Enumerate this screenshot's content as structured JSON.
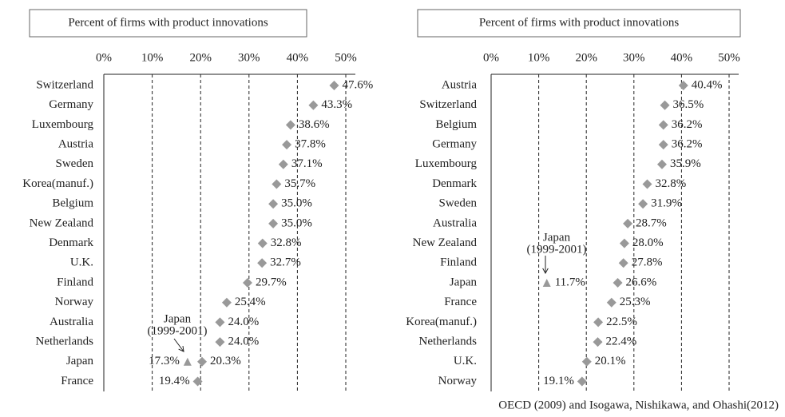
{
  "chart_data": [
    {
      "type": "dot",
      "title": "Percent of firms with product innovations",
      "categories": [
        "Switzerland",
        "Germany",
        "Luxembourg",
        "Austria",
        "Sweden",
        "Korea(manuf.)",
        "Belgium",
        "New Zealand",
        "Denmark",
        "U.K.",
        "Finland",
        "Norway",
        "Australia",
        "Netherlands",
        "Japan",
        "France"
      ],
      "series": [
        {
          "marker": "diamond",
          "color": "#999999",
          "values": [
            47.6,
            43.3,
            38.6,
            37.8,
            37.1,
            35.7,
            35.0,
            35.0,
            32.8,
            32.7,
            29.7,
            25.4,
            24.0,
            24.0,
            20.3,
            19.4
          ],
          "value_labels": [
            "47.6%",
            "43.3%",
            "38.6%",
            "37.8%",
            "37.1%",
            "35.7%",
            "35.0%",
            "35.0%",
            "32.8%",
            "32.7%",
            "29.7%",
            "25.4%",
            "24.0%",
            "24.0%",
            "20.3%",
            "19.4%"
          ]
        },
        {
          "marker": "triangle",
          "color": "#999999",
          "values": [
            null,
            null,
            null,
            null,
            null,
            null,
            null,
            null,
            null,
            null,
            null,
            null,
            null,
            null,
            17.3,
            null
          ],
          "value_labels": [
            null,
            null,
            null,
            null,
            null,
            null,
            null,
            null,
            null,
            null,
            null,
            null,
            null,
            null,
            "17.3%",
            null
          ]
        }
      ],
      "xlim": [
        0,
        50
      ],
      "xticks": [
        {
          "value": 0,
          "label": "0%"
        },
        {
          "value": 10,
          "label": "10%"
        },
        {
          "value": 20,
          "label": "20%"
        },
        {
          "value": 30,
          "label": "30%"
        },
        {
          "value": 40,
          "label": "40%"
        },
        {
          "value": 50,
          "label": "50%"
        }
      ],
      "grid": true,
      "annotation": [
        "Japan",
        "(1999-2001)"
      ]
    },
    {
      "type": "dot",
      "title": "Percent of firms with product innovations",
      "categories": [
        "Austria",
        "Switzerland",
        "Belgium",
        "Germany",
        "Luxembourg",
        "Denmark",
        "Sweden",
        "Australia",
        "New Zealand",
        "Finland",
        "Japan",
        "France",
        "Korea(manuf.)",
        "Netherlands",
        "U.K.",
        "Norway"
      ],
      "series": [
        {
          "marker": "diamond",
          "color": "#999999",
          "values": [
            40.4,
            36.5,
            36.2,
            36.2,
            35.9,
            32.8,
            31.9,
            28.7,
            28.0,
            27.8,
            26.6,
            25.3,
            22.5,
            22.4,
            20.1,
            19.1
          ],
          "value_labels": [
            "40.4%",
            "36.5%",
            "36.2%",
            "36.2%",
            "35.9%",
            "32.8%",
            "31.9%",
            "28.7%",
            "28.0%",
            "27.8%",
            "26.6%",
            "25.3%",
            "22.5%",
            "22.4%",
            "20.1%",
            "19.1%"
          ]
        },
        {
          "marker": "triangle",
          "color": "#999999",
          "values": [
            null,
            null,
            null,
            null,
            null,
            null,
            null,
            null,
            null,
            null,
            11.7,
            null,
            null,
            null,
            null,
            null
          ],
          "value_labels": [
            null,
            null,
            null,
            null,
            null,
            null,
            null,
            null,
            null,
            null,
            "11.7%",
            null,
            null,
            null,
            null,
            null
          ]
        }
      ],
      "xlim": [
        0,
        50
      ],
      "xticks": [
        {
          "value": 0,
          "label": "0%"
        },
        {
          "value": 10,
          "label": "10%"
        },
        {
          "value": 20,
          "label": "20%"
        },
        {
          "value": 30,
          "label": "30%"
        },
        {
          "value": 40,
          "label": "40%"
        },
        {
          "value": 50,
          "label": "50%"
        }
      ],
      "grid": true,
      "annotation": [
        "Japan",
        "(1999-2001)"
      ]
    }
  ],
  "source": "OECD (2009) and Isogawa, Nishikawa, and Ohashi(2012)"
}
